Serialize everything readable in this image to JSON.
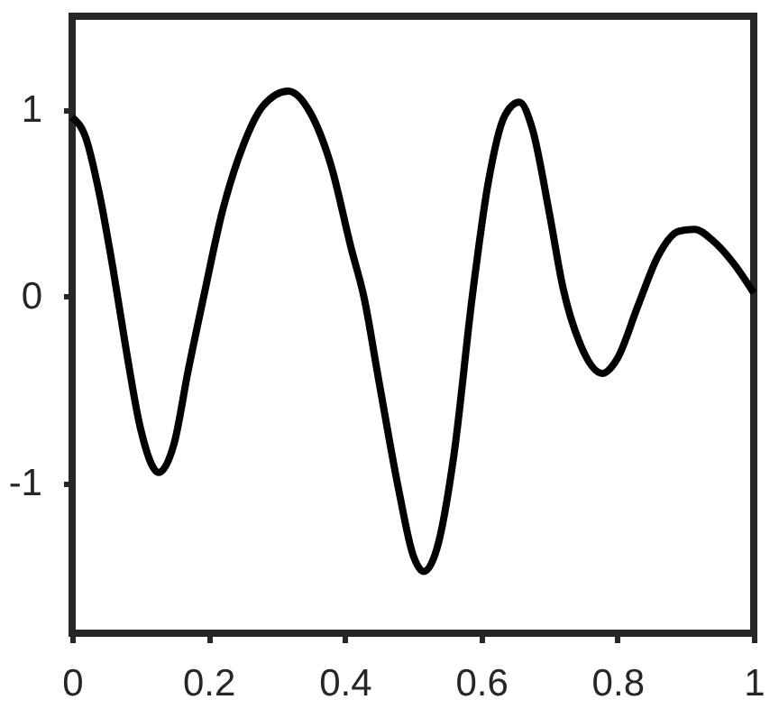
{
  "chart_data": {
    "type": "line",
    "xlim": [
      0,
      1
    ],
    "ylim": [
      -1.8,
      1.5
    ],
    "xticks": [
      0,
      0.2,
      0.4,
      0.6,
      0.8,
      1
    ],
    "yticks": [
      -1,
      0,
      1
    ],
    "grid": false,
    "marker": "none",
    "line_style": "solid",
    "series": [
      {
        "color": "#000000",
        "x": [
          0,
          0.02,
          0.04,
          0.06,
          0.08,
          0.1,
          0.127,
          0.15,
          0.17,
          0.193,
          0.22,
          0.25,
          0.28,
          0.317,
          0.35,
          0.38,
          0.41,
          0.428,
          0.45,
          0.48,
          0.5,
          0.516,
          0.535,
          0.56,
          0.587,
          0.61,
          0.635,
          0.656,
          0.675,
          0.7,
          0.72,
          0.745,
          0.778,
          0.8,
          0.83,
          0.86,
          0.89,
          0.913,
          0.94,
          0.97,
          1.0
        ],
        "values": [
          0.96,
          0.85,
          0.55,
          0.15,
          -0.3,
          -0.7,
          -0.94,
          -0.78,
          -0.4,
          0,
          0.45,
          0.8,
          1.02,
          1.1,
          0.98,
          0.7,
          0.25,
          0,
          -0.45,
          -1.05,
          -1.38,
          -1.47,
          -1.35,
          -0.85,
          0,
          0.6,
          0.97,
          1.04,
          0.9,
          0.45,
          0.05,
          -0.25,
          -0.41,
          -0.33,
          -0.05,
          0.22,
          0.35,
          0.36,
          0.3,
          0.18,
          0.02
        ]
      }
    ]
  }
}
